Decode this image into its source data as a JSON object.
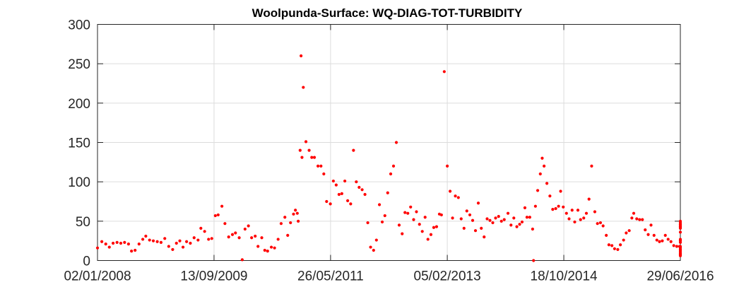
{
  "chart_data": {
    "type": "scatter",
    "title": "Woolpunda-Surface: WQ-DIAG-TOT-TURBIDITY",
    "xlabel": "",
    "ylabel": "",
    "x_axis": {
      "type": "date",
      "range": [
        "02/01/2008",
        "29/06/2016"
      ],
      "tick_labels": [
        "02/01/2008",
        "13/09/2009",
        "26/05/2011",
        "05/02/2013",
        "18/10/2014",
        "29/06/2016"
      ]
    },
    "y_axis": {
      "range": [
        0,
        300
      ],
      "ticks": [
        0,
        50,
        100,
        150,
        200,
        250,
        300
      ]
    },
    "grid": true,
    "legend": "none",
    "marker_color": "#ff0000",
    "series": [
      {
        "points": [
          [
            "2008-01-01",
            16
          ],
          [
            "2008-01-25",
            24
          ],
          [
            "2008-02-15",
            21
          ],
          [
            "2008-03-05",
            17
          ],
          [
            "2008-03-25",
            22
          ],
          [
            "2008-04-15",
            23
          ],
          [
            "2008-05-05",
            22
          ],
          [
            "2008-05-25",
            23
          ],
          [
            "2008-06-15",
            21
          ],
          [
            "2008-07-01",
            12
          ],
          [
            "2008-07-20",
            13
          ],
          [
            "2008-08-10",
            21
          ],
          [
            "2008-08-30",
            27
          ],
          [
            "2008-09-15",
            31
          ],
          [
            "2008-10-05",
            26
          ],
          [
            "2008-10-25",
            25
          ],
          [
            "2008-11-15",
            24
          ],
          [
            "2008-12-05",
            23
          ],
          [
            "2008-12-25",
            28
          ],
          [
            "2009-01-15",
            18
          ],
          [
            "2009-02-05",
            14
          ],
          [
            "2009-02-25",
            22
          ],
          [
            "2009-03-15",
            25
          ],
          [
            "2009-04-01",
            17
          ],
          [
            "2009-04-20",
            24
          ],
          [
            "2009-05-10",
            22
          ],
          [
            "2009-05-30",
            29
          ],
          [
            "2009-06-20",
            26
          ],
          [
            "2009-07-05",
            41
          ],
          [
            "2009-07-25",
            37
          ],
          [
            "2009-08-15",
            27
          ],
          [
            "2009-09-01",
            28
          ],
          [
            "2009-09-20",
            57
          ],
          [
            "2009-10-05",
            58
          ],
          [
            "2009-10-25",
            69
          ],
          [
            "2009-11-10",
            47
          ],
          [
            "2009-11-30",
            30
          ],
          [
            "2009-12-20",
            33
          ],
          [
            "2010-01-05",
            35
          ],
          [
            "2010-01-25",
            29
          ],
          [
            "2010-02-10",
            1
          ],
          [
            "2010-02-25",
            40
          ],
          [
            "2010-03-15",
            44
          ],
          [
            "2010-04-01",
            29
          ],
          [
            "2010-04-20",
            31
          ],
          [
            "2010-05-05",
            18
          ],
          [
            "2010-05-25",
            29
          ],
          [
            "2010-06-10",
            13
          ],
          [
            "2010-06-25",
            12
          ],
          [
            "2010-07-15",
            17
          ],
          [
            "2010-08-01",
            16
          ],
          [
            "2010-08-20",
            27
          ],
          [
            "2010-09-05",
            47
          ],
          [
            "2010-09-25",
            55
          ],
          [
            "2010-10-10",
            32
          ],
          [
            "2010-10-25",
            48
          ],
          [
            "2010-11-10",
            59
          ],
          [
            "2010-11-20",
            64
          ],
          [
            "2010-11-30",
            60
          ],
          [
            "2010-12-05",
            50
          ],
          [
            "2010-12-15",
            140
          ],
          [
            "2010-12-20",
            260
          ],
          [
            "2010-12-25",
            131
          ],
          [
            "2011-01-01",
            220
          ],
          [
            "2011-01-15",
            151
          ],
          [
            "2011-02-01",
            140
          ],
          [
            "2011-02-15",
            131
          ],
          [
            "2011-03-01",
            131
          ],
          [
            "2011-03-20",
            120
          ],
          [
            "2011-04-05",
            120
          ],
          [
            "2011-04-20",
            110
          ],
          [
            "2011-05-05",
            75
          ],
          [
            "2011-05-25",
            72
          ],
          [
            "2011-06-10",
            101
          ],
          [
            "2011-06-25",
            96
          ],
          [
            "2011-07-10",
            84
          ],
          [
            "2011-07-25",
            85
          ],
          [
            "2011-08-10",
            101
          ],
          [
            "2011-08-25",
            76
          ],
          [
            "2011-09-10",
            72
          ],
          [
            "2011-09-25",
            140
          ],
          [
            "2011-10-10",
            100
          ],
          [
            "2011-10-25",
            93
          ],
          [
            "2011-11-10",
            90
          ],
          [
            "2011-11-25",
            84
          ],
          [
            "2011-12-10",
            48
          ],
          [
            "2011-12-25",
            17
          ],
          [
            "2012-01-10",
            13
          ],
          [
            "2012-01-25",
            26
          ],
          [
            "2012-02-10",
            71
          ],
          [
            "2012-02-25",
            49
          ],
          [
            "2012-03-10",
            57
          ],
          [
            "2012-03-25",
            86
          ],
          [
            "2012-04-10",
            110
          ],
          [
            "2012-04-25",
            120
          ],
          [
            "2012-05-10",
            150
          ],
          [
            "2012-05-25",
            45
          ],
          [
            "2012-06-10",
            34
          ],
          [
            "2012-06-25",
            61
          ],
          [
            "2012-07-10",
            60
          ],
          [
            "2012-07-25",
            68
          ],
          [
            "2012-08-10",
            52
          ],
          [
            "2012-08-25",
            62
          ],
          [
            "2012-09-10",
            46
          ],
          [
            "2012-09-25",
            37
          ],
          [
            "2012-10-10",
            55
          ],
          [
            "2012-10-25",
            27
          ],
          [
            "2012-11-10",
            33
          ],
          [
            "2012-11-25",
            42
          ],
          [
            "2012-12-10",
            43
          ],
          [
            "2012-12-25",
            59
          ],
          [
            "2013-01-05",
            58
          ],
          [
            "2013-01-20",
            240
          ],
          [
            "2013-02-05",
            120
          ],
          [
            "2013-02-20",
            88
          ],
          [
            "2013-03-05",
            54
          ],
          [
            "2013-03-20",
            82
          ],
          [
            "2013-04-05",
            80
          ],
          [
            "2013-04-20",
            53
          ],
          [
            "2013-05-05",
            41
          ],
          [
            "2013-05-20",
            63
          ],
          [
            "2013-06-05",
            58
          ],
          [
            "2013-06-20",
            51
          ],
          [
            "2013-07-05",
            38
          ],
          [
            "2013-07-20",
            73
          ],
          [
            "2013-08-05",
            41
          ],
          [
            "2013-08-20",
            30
          ],
          [
            "2013-09-05",
            53
          ],
          [
            "2013-09-20",
            51
          ],
          [
            "2013-10-05",
            48
          ],
          [
            "2013-10-20",
            54
          ],
          [
            "2013-11-05",
            56
          ],
          [
            "2013-11-20",
            50
          ],
          [
            "2013-12-05",
            52
          ],
          [
            "2013-12-25",
            60
          ],
          [
            "2014-01-10",
            45
          ],
          [
            "2014-01-25",
            54
          ],
          [
            "2014-02-10",
            43
          ],
          [
            "2014-02-25",
            46
          ],
          [
            "2014-03-10",
            49
          ],
          [
            "2014-03-25",
            67
          ],
          [
            "2014-04-05",
            55
          ],
          [
            "2014-04-20",
            55
          ],
          [
            "2014-05-05",
            40
          ],
          [
            "2014-05-10",
            0
          ],
          [
            "2014-05-20",
            69
          ],
          [
            "2014-06-01",
            89
          ],
          [
            "2014-06-15",
            110
          ],
          [
            "2014-06-25",
            130
          ],
          [
            "2014-07-05",
            120
          ],
          [
            "2014-07-20",
            98
          ],
          [
            "2014-08-05",
            82
          ],
          [
            "2014-08-20",
            65
          ],
          [
            "2014-09-05",
            66
          ],
          [
            "2014-09-20",
            69
          ],
          [
            "2014-10-01",
            88
          ],
          [
            "2014-10-15",
            68
          ],
          [
            "2014-11-01",
            60
          ],
          [
            "2014-11-15",
            53
          ],
          [
            "2014-12-01",
            64
          ],
          [
            "2014-12-15",
            49
          ],
          [
            "2015-01-01",
            64
          ],
          [
            "2015-01-15",
            52
          ],
          [
            "2015-02-01",
            54
          ],
          [
            "2015-02-15",
            60
          ],
          [
            "2015-03-01",
            78
          ],
          [
            "2015-03-15",
            120
          ],
          [
            "2015-04-01",
            62
          ],
          [
            "2015-04-15",
            47
          ],
          [
            "2015-05-01",
            48
          ],
          [
            "2015-05-15",
            44
          ],
          [
            "2015-06-01",
            32
          ],
          [
            "2015-06-15",
            20
          ],
          [
            "2015-07-01",
            19
          ],
          [
            "2015-07-15",
            15
          ],
          [
            "2015-08-01",
            14
          ],
          [
            "2015-08-15",
            20
          ],
          [
            "2015-09-01",
            26
          ],
          [
            "2015-09-15",
            35
          ],
          [
            "2015-10-01",
            38
          ],
          [
            "2015-10-15",
            54
          ],
          [
            "2015-10-25",
            60
          ],
          [
            "2015-11-10",
            53
          ],
          [
            "2015-11-25",
            52
          ],
          [
            "2015-12-10",
            52
          ],
          [
            "2015-12-25",
            39
          ],
          [
            "2016-01-10",
            33
          ],
          [
            "2016-01-25",
            45
          ],
          [
            "2016-02-10",
            32
          ],
          [
            "2016-02-25",
            26
          ],
          [
            "2016-03-10",
            24
          ],
          [
            "2016-03-25",
            25
          ],
          [
            "2016-04-10",
            32
          ],
          [
            "2016-04-25",
            27
          ],
          [
            "2016-05-10",
            24
          ],
          [
            "2016-05-25",
            19
          ],
          [
            "2016-06-10",
            18
          ],
          [
            "2016-06-25",
            18
          ],
          [
            "2016-07-10",
            18
          ],
          [
            "2016-07-25",
            14
          ],
          [
            "2016-08-10",
            27
          ],
          [
            "2016-08-25",
            26
          ],
          [
            "2016-09-10",
            46
          ],
          [
            "2016-09-25",
            44
          ],
          [
            "2016-10-10",
            43
          ],
          [
            "2016-10-25",
            48
          ],
          [
            "2016-11-10",
            50
          ],
          [
            "2016-11-25",
            46
          ],
          [
            "2016-12-10",
            44
          ],
          [
            "2016-12-25",
            42
          ],
          [
            "2017-01-10",
            36
          ],
          [
            "2017-01-25",
            41
          ],
          [
            "2017-02-10",
            25
          ],
          [
            "2017-02-25",
            23
          ],
          [
            "2017-03-10",
            16
          ],
          [
            "2017-03-25",
            17
          ],
          [
            "2017-04-10",
            12
          ],
          [
            "2017-04-25",
            9
          ],
          [
            "2017-05-10",
            8
          ],
          [
            "2017-05-25",
            14
          ],
          [
            "2017-06-05",
            10
          ],
          [
            "2017-06-15",
            7
          ],
          [
            "2017-06-25",
            6
          ]
        ]
      }
    ]
  }
}
